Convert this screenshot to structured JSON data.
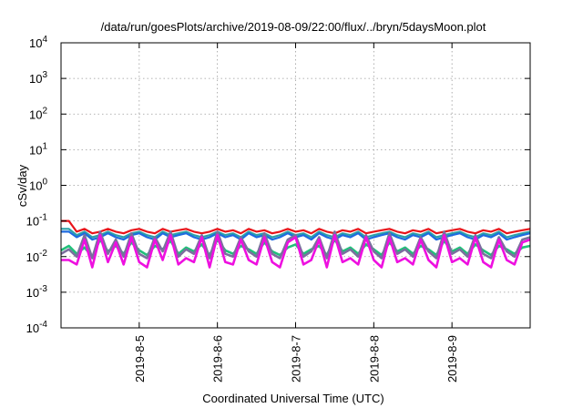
{
  "chart_data": {
    "type": "line",
    "title": "/data/run/goesPlots/archive/2019-08-09/22:00/flux/../bryn/5daysMoon.plot",
    "xlabel": "Coordinated Universal Time (UTC)",
    "ylabel": "cSv/day",
    "y_scale": "log",
    "ylim": [
      0.0001,
      10000
    ],
    "xlim": [
      "2019-08-04T00:00",
      "2019-08-10T00:00"
    ],
    "grid": true,
    "x_ticks": [
      "2019-8-5",
      "2019-8-6",
      "2019-8-7",
      "2019-8-8",
      "2019-8-9"
    ],
    "y_ticks": [
      {
        "base": "10",
        "exp": "-4"
      },
      {
        "base": "10",
        "exp": "-3"
      },
      {
        "base": "10",
        "exp": "-2"
      },
      {
        "base": "10",
        "exp": "-1"
      },
      {
        "base": "10",
        "exp": "0"
      },
      {
        "base": "10",
        "exp": "1"
      },
      {
        "base": "10",
        "exp": "2"
      },
      {
        "base": "10",
        "exp": "3"
      },
      {
        "base": "10",
        "exp": "4"
      }
    ],
    "series": [
      {
        "color": "#e8141a",
        "values": [
          0.1,
          0.1,
          0.05,
          0.06,
          0.045,
          0.05,
          0.06,
          0.05,
          0.045,
          0.055,
          0.06,
          0.05,
          0.045,
          0.06,
          0.05,
          0.055,
          0.06,
          0.05,
          0.045,
          0.05,
          0.06,
          0.05,
          0.055,
          0.045,
          0.06,
          0.05,
          0.055,
          0.045,
          0.05,
          0.06,
          0.05,
          0.055,
          0.045,
          0.06,
          0.05,
          0.045,
          0.055,
          0.05,
          0.06,
          0.045,
          0.05,
          0.055,
          0.06,
          0.05,
          0.045,
          0.055,
          0.05,
          0.06,
          0.045,
          0.05,
          0.055,
          0.06,
          0.05,
          0.045,
          0.055,
          0.05,
          0.06,
          0.045,
          0.05,
          0.055,
          0.06
        ]
      },
      {
        "color": "#2aa0a8",
        "values": [
          0.06,
          0.06,
          0.04,
          0.05,
          0.035,
          0.04,
          0.05,
          0.04,
          0.035,
          0.045,
          0.05,
          0.04,
          0.035,
          0.05,
          0.04,
          0.045,
          0.05,
          0.04,
          0.035,
          0.04,
          0.05,
          0.04,
          0.045,
          0.035,
          0.05,
          0.04,
          0.045,
          0.035,
          0.04,
          0.05,
          0.04,
          0.045,
          0.035,
          0.05,
          0.04,
          0.035,
          0.045,
          0.04,
          0.05,
          0.035,
          0.04,
          0.045,
          0.05,
          0.04,
          0.035,
          0.045,
          0.04,
          0.05,
          0.035,
          0.04,
          0.045,
          0.05,
          0.04,
          0.035,
          0.045,
          0.04,
          0.05,
          0.035,
          0.04,
          0.045,
          0.05
        ]
      },
      {
        "color": "#1e6be0",
        "values": [
          0.05,
          0.05,
          0.035,
          0.045,
          0.03,
          0.035,
          0.045,
          0.035,
          0.03,
          0.04,
          0.045,
          0.035,
          0.03,
          0.045,
          0.035,
          0.04,
          0.045,
          0.035,
          0.03,
          0.035,
          0.045,
          0.035,
          0.04,
          0.03,
          0.045,
          0.035,
          0.04,
          0.03,
          0.035,
          0.045,
          0.035,
          0.04,
          0.03,
          0.045,
          0.035,
          0.03,
          0.04,
          0.035,
          0.045,
          0.03,
          0.035,
          0.04,
          0.045,
          0.035,
          0.03,
          0.04,
          0.035,
          0.045,
          0.03,
          0.035,
          0.04,
          0.045,
          0.035,
          0.03,
          0.04,
          0.035,
          0.045,
          0.03,
          0.035,
          0.04,
          0.045
        ]
      },
      {
        "color": "#22c07a",
        "values": [
          0.015,
          0.02,
          0.012,
          0.018,
          0.01,
          0.03,
          0.014,
          0.02,
          0.012,
          0.025,
          0.015,
          0.011,
          0.02,
          0.016,
          0.028,
          0.012,
          0.018,
          0.014,
          0.022,
          0.011,
          0.03,
          0.015,
          0.012,
          0.02,
          0.016,
          0.012,
          0.025,
          0.014,
          0.011,
          0.018,
          0.022,
          0.012,
          0.016,
          0.02,
          0.011,
          0.03,
          0.014,
          0.018,
          0.012,
          0.022,
          0.016,
          0.011,
          0.025,
          0.014,
          0.018,
          0.012,
          0.02,
          0.016,
          0.011,
          0.028,
          0.014,
          0.018,
          0.012,
          0.022,
          0.015,
          0.011,
          0.02,
          0.016,
          0.012,
          0.018,
          0.02
        ]
      },
      {
        "color": "#7b6f9e",
        "values": [
          0.012,
          0.016,
          0.01,
          0.04,
          0.009,
          0.05,
          0.012,
          0.03,
          0.01,
          0.045,
          0.012,
          0.009,
          0.035,
          0.014,
          0.05,
          0.01,
          0.016,
          0.012,
          0.04,
          0.009,
          0.05,
          0.012,
          0.01,
          0.035,
          0.014,
          0.01,
          0.045,
          0.012,
          0.009,
          0.03,
          0.04,
          0.01,
          0.014,
          0.035,
          0.009,
          0.05,
          0.012,
          0.016,
          0.01,
          0.04,
          0.014,
          0.009,
          0.045,
          0.012,
          0.016,
          0.01,
          0.035,
          0.014,
          0.009,
          0.05,
          0.012,
          0.016,
          0.01,
          0.04,
          0.012,
          0.009,
          0.035,
          0.014,
          0.01,
          0.03,
          0.035
        ]
      },
      {
        "color": "#ee10e0",
        "values": [
          0.008,
          0.008,
          0.006,
          0.03,
          0.005,
          0.04,
          0.007,
          0.025,
          0.006,
          0.035,
          0.007,
          0.005,
          0.03,
          0.008,
          0.04,
          0.006,
          0.009,
          0.007,
          0.035,
          0.005,
          0.04,
          0.007,
          0.006,
          0.03,
          0.008,
          0.006,
          0.035,
          0.007,
          0.005,
          0.025,
          0.035,
          0.006,
          0.008,
          0.03,
          0.005,
          0.04,
          0.007,
          0.009,
          0.006,
          0.035,
          0.008,
          0.005,
          0.035,
          0.007,
          0.009,
          0.006,
          0.03,
          0.008,
          0.005,
          0.04,
          0.007,
          0.009,
          0.006,
          0.035,
          0.007,
          0.005,
          0.03,
          0.008,
          0.006,
          0.025,
          0.03
        ]
      }
    ]
  }
}
